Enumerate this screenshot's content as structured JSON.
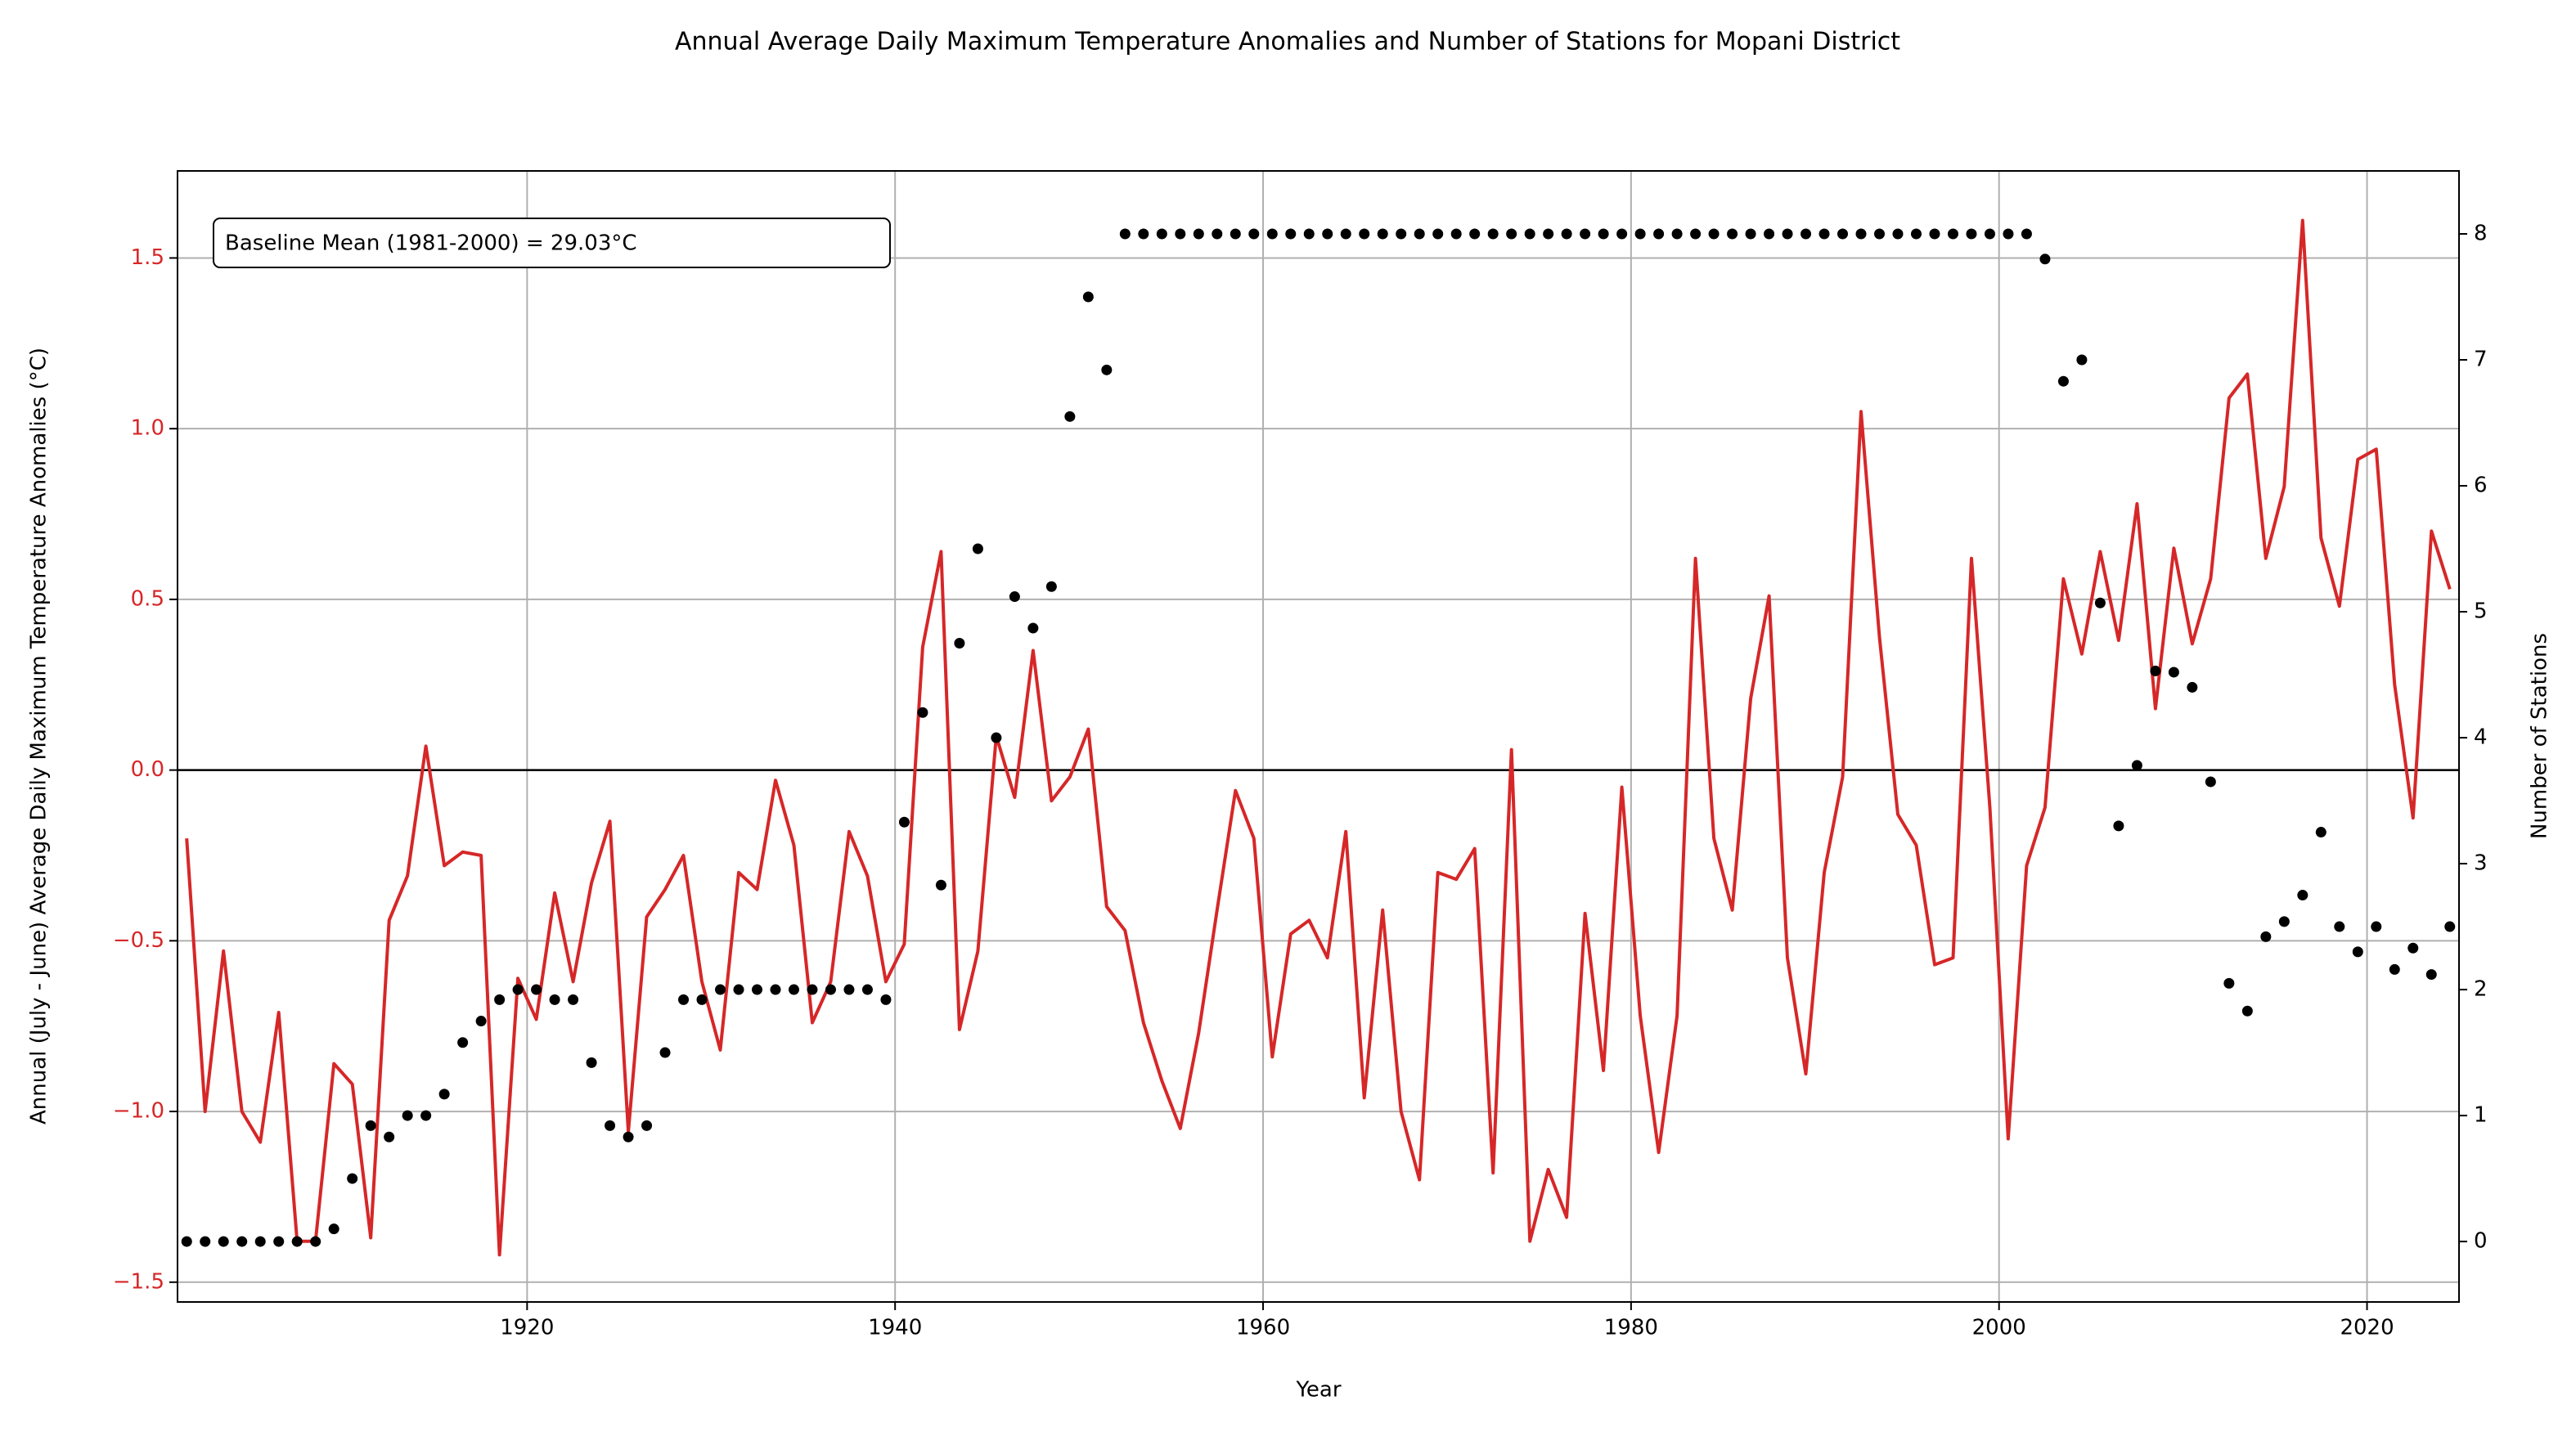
{
  "chart_data": {
    "type": "line",
    "title": "Annual Average Daily Maximum Temperature Anomalies and Number of Stations for Mopani District",
    "xlabel": "Year",
    "ylabel": "Annual (July - June) Average Daily Maximum Temperature Anomalies (°C)",
    "y2label": "Number of Stations",
    "annotation": "Baseline Mean (1981-2000) = 29.03°C",
    "hline": 0,
    "grid": true,
    "xlim": [
      1901,
      2025
    ],
    "xticks": [
      1920,
      1940,
      1960,
      1980,
      2000,
      2020
    ],
    "ylim": [
      -1.558,
      1.755
    ],
    "yticks": [
      {
        "value": -1.5,
        "label": "−1.5"
      },
      {
        "value": -1.0,
        "label": "−1.0"
      },
      {
        "value": -0.5,
        "label": "−0.5"
      },
      {
        "value": 0,
        "label": "0.0"
      },
      0.5,
      {
        "value": 1.0,
        "label": "1.0"
      },
      1.5
    ],
    "y2lim": [
      -0.48,
      8.5
    ],
    "y2ticks": [
      0,
      1,
      2,
      3,
      4,
      5,
      6,
      7,
      8
    ],
    "x": [
      1901.5,
      1902.5,
      1903.5,
      1904.5,
      1905.5,
      1906.5,
      1907.5,
      1908.5,
      1909.5,
      1910.5,
      1911.5,
      1912.5,
      1913.5,
      1914.5,
      1915.5,
      1916.5,
      1917.5,
      1918.5,
      1919.5,
      1920.5,
      1921.5,
      1922.5,
      1923.5,
      1924.5,
      1925.5,
      1926.5,
      1927.5,
      1928.5,
      1929.5,
      1930.5,
      1931.5,
      1932.5,
      1933.5,
      1934.5,
      1935.5,
      1936.5,
      1937.5,
      1938.5,
      1939.5,
      1940.5,
      1941.5,
      1942.5,
      1943.5,
      1944.5,
      1945.5,
      1946.5,
      1947.5,
      1948.5,
      1949.5,
      1950.5,
      1951.5,
      1952.5,
      1953.5,
      1954.5,
      1955.5,
      1956.5,
      1957.5,
      1958.5,
      1959.5,
      1960.5,
      1961.5,
      1962.5,
      1963.5,
      1964.5,
      1965.5,
      1966.5,
      1967.5,
      1968.5,
      1969.5,
      1970.5,
      1971.5,
      1972.5,
      1973.5,
      1974.5,
      1975.5,
      1976.5,
      1977.5,
      1978.5,
      1979.5,
      1980.5,
      1981.5,
      1982.5,
      1983.5,
      1984.5,
      1985.5,
      1986.5,
      1987.5,
      1988.5,
      1989.5,
      1990.5,
      1991.5,
      1992.5,
      1993.5,
      1994.5,
      1995.5,
      1996.5,
      1997.5,
      1998.5,
      1999.5,
      2000.5,
      2001.5,
      2002.5,
      2003.5,
      2004.5,
      2005.5,
      2006.5,
      2007.5,
      2008.5,
      2009.5,
      2010.5,
      2011.5,
      2012.5,
      2013.5,
      2014.5,
      2015.5,
      2016.5,
      2017.5,
      2018.5,
      2019.5,
      2020.5,
      2021.5,
      2022.5,
      2023.5,
      2024.5
    ],
    "series": [
      {
        "type": "line",
        "color": "#d62728",
        "values": [
          -0.2,
          -1.0,
          -0.53,
          -1.0,
          -1.09,
          -0.71,
          -1.38,
          -1.38,
          -0.86,
          -0.92,
          -1.37,
          -0.44,
          -0.31,
          0.07,
          -0.28,
          -0.24,
          -0.25,
          -1.42,
          -0.61,
          -0.73,
          -0.36,
          -0.62,
          -0.33,
          -0.15,
          -1.06,
          -0.43,
          -0.35,
          -0.25,
          -0.62,
          -0.82,
          -0.3,
          -0.35,
          -0.03,
          -0.22,
          -0.74,
          -0.62,
          -0.18,
          -0.31,
          -0.62,
          -0.51,
          0.36,
          0.64,
          -0.76,
          -0.53,
          0.1,
          -0.08,
          0.35,
          -0.09,
          -0.02,
          0.12,
          -0.4,
          -0.47,
          -0.74,
          -0.91,
          -1.05,
          -0.77,
          -0.41,
          -0.06,
          -0.2,
          -0.84,
          -0.48,
          -0.44,
          -0.55,
          -0.18,
          -0.96,
          -0.41,
          -1.0,
          -1.2,
          -0.3,
          -0.32,
          -0.23,
          -1.18,
          0.06,
          -1.38,
          -1.17,
          -1.31,
          -0.42,
          -0.88,
          -0.05,
          -0.72,
          -1.12,
          -0.72,
          0.62,
          -0.2,
          -0.41,
          0.21,
          0.51,
          -0.55,
          -0.89,
          -0.3,
          -0.02,
          1.05,
          0.39,
          -0.13,
          -0.22,
          -0.57,
          -0.55,
          0.62,
          -0.11,
          -1.08,
          -0.28,
          -0.11,
          0.56,
          0.34,
          0.64,
          0.38,
          0.78,
          0.18,
          0.65,
          0.37,
          0.56,
          1.09,
          1.16,
          0.62,
          0.83,
          1.61,
          0.68,
          0.48,
          0.91,
          0.94,
          0.25,
          -0.14,
          0.7,
          0.53
        ]
      },
      {
        "type": "scatter",
        "axis": "y2",
        "color": "#000000",
        "values": [
          0,
          0,
          0,
          0,
          0,
          0,
          0,
          0,
          0.1,
          0.5,
          0.92,
          0.83,
          1.0,
          1.0,
          1.17,
          1.58,
          1.75,
          1.92,
          2,
          2,
          1.92,
          1.92,
          1.42,
          0.92,
          0.83,
          0.92,
          1.5,
          1.92,
          1.92,
          2,
          2,
          2,
          2,
          2,
          2,
          2,
          2,
          2,
          1.92,
          3.33,
          4.2,
          2.83,
          4.75,
          5.5,
          4.0,
          5.12,
          4.87,
          5.2,
          6.55,
          7.5,
          6.92,
          8,
          8,
          8,
          8,
          8,
          8,
          8,
          8,
          8,
          8,
          8,
          8,
          8,
          8,
          8,
          8,
          8,
          8,
          8,
          8,
          8,
          8,
          8,
          8,
          8,
          8,
          8,
          8,
          8,
          8,
          8,
          8,
          8,
          8,
          8,
          8,
          8,
          8,
          8,
          8,
          8,
          8,
          8,
          8,
          8,
          8,
          8,
          8,
          8,
          8,
          7.8,
          6.83,
          7.0,
          5.07,
          3.3,
          3.78,
          4.53,
          4.52,
          4.4,
          3.65,
          2.05,
          1.83,
          2.42,
          2.54,
          2.75,
          3.25,
          2.5,
          2.3,
          2.5,
          2.16,
          2.33,
          2.12,
          2.5
        ]
      }
    ]
  }
}
